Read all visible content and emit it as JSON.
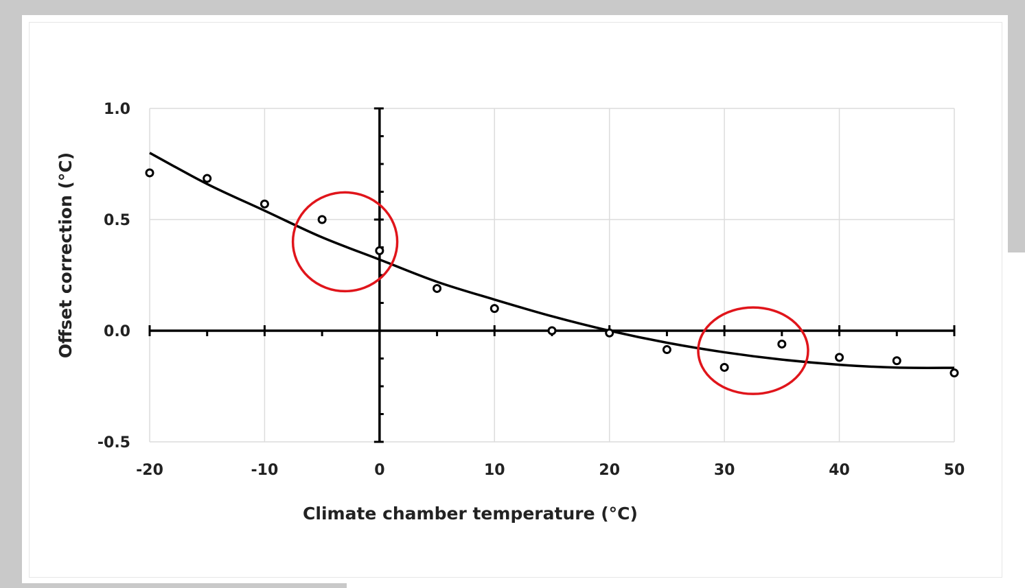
{
  "chart_data": {
    "type": "scatter",
    "xlabel": "Climate chamber temperature (°C)",
    "ylabel": "Offset correction  (°C)",
    "xlim": [
      -20,
      50
    ],
    "ylim": [
      -0.5,
      1.0
    ],
    "x_ticks": [
      "-20",
      "-10",
      "0",
      "10",
      "20",
      "30",
      "40",
      "50"
    ],
    "y_ticks": [
      "1.0",
      "0.5",
      "0.0",
      "-0.5"
    ],
    "grid": true,
    "points": {
      "x": [
        -20,
        -15,
        -10,
        -5,
        0,
        5,
        10,
        15,
        20,
        25,
        30,
        35,
        40,
        45,
        50
      ],
      "y": [
        0.71,
        0.685,
        0.57,
        0.5,
        0.36,
        0.19,
        0.1,
        0.0,
        -0.01,
        -0.085,
        -0.165,
        -0.06,
        -0.12,
        -0.135,
        -0.19
      ]
    },
    "trend_line": {
      "x": [
        -20,
        -15,
        -10,
        -5,
        0,
        5,
        10,
        15,
        20,
        25,
        30,
        35,
        40,
        45,
        50
      ],
      "y": [
        0.8,
        0.66,
        0.54,
        0.42,
        0.32,
        0.22,
        0.14,
        0.065,
        0.0,
        -0.054,
        -0.097,
        -0.13,
        -0.153,
        -0.166,
        -0.167
      ]
    },
    "annotations": [
      {
        "shape": "ellipse",
        "color": "#e0151b",
        "center": [
          -3,
          0.4
        ]
      },
      {
        "shape": "ellipse",
        "color": "#e0151b",
        "center": [
          32.5,
          -0.09
        ]
      }
    ]
  }
}
